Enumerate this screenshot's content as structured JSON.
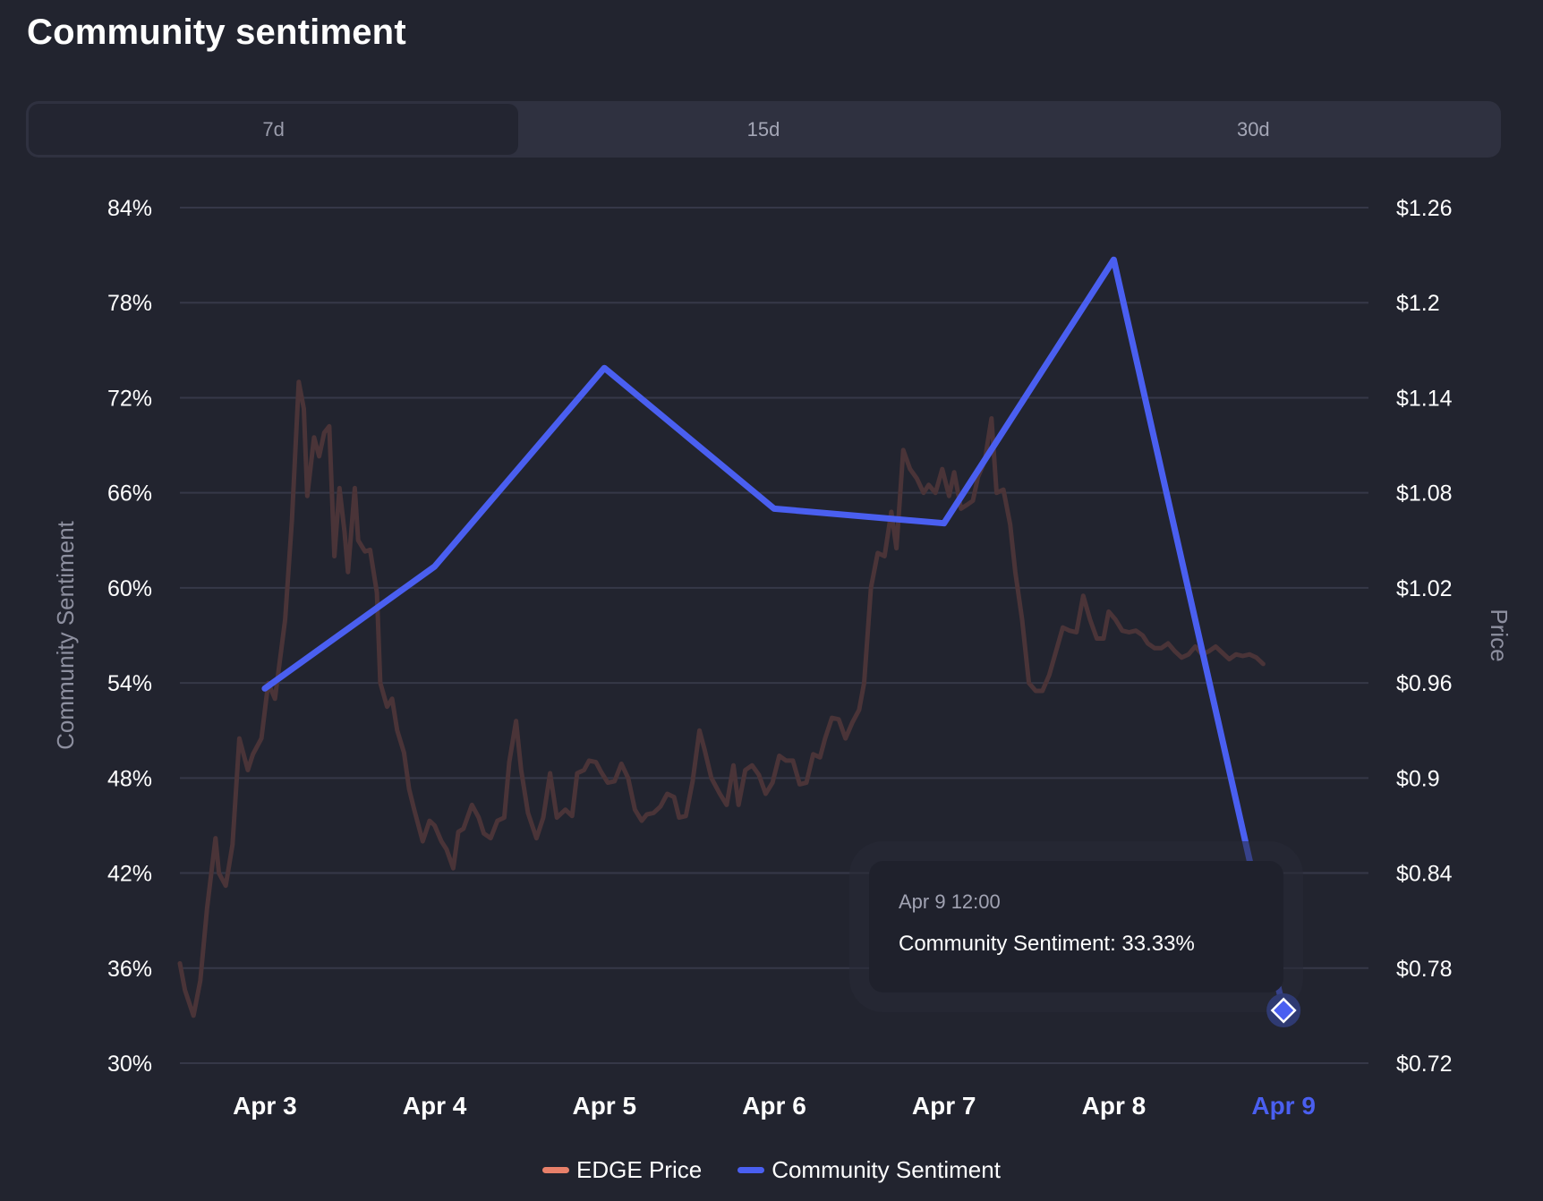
{
  "header": {
    "title": "Community sentiment"
  },
  "tabs": [
    {
      "label": "7d",
      "active": true
    },
    {
      "label": "15d",
      "active": false
    },
    {
      "label": "30d",
      "active": false
    }
  ],
  "tooltip": {
    "date": "Apr 9 12:00",
    "text": "Community Sentiment: 33.33%"
  },
  "colors": {
    "price_line": "#4a3438",
    "price_legend": "#e8806a",
    "sentiment": "#4a5ff0",
    "grid": "#363848",
    "background": "#22242f"
  },
  "chart_data": {
    "type": "line",
    "title": "Community sentiment",
    "xlabel": "",
    "ylabel": "Community Sentiment",
    "y2label": "Price",
    "x_ticks": [
      "Apr 3",
      "Apr 4",
      "Apr 5",
      "Apr 6",
      "Apr 7",
      "Apr 8",
      "Apr 9"
    ],
    "highlighted_x_tick": "Apr 9",
    "y_ticks": [
      "84%",
      "78%",
      "72%",
      "66%",
      "60%",
      "54%",
      "48%",
      "42%",
      "36%",
      "30%"
    ],
    "y2_ticks": [
      "$1.26",
      "$1.2",
      "$1.14",
      "$1.08",
      "$1.02",
      "$0.96",
      "$0.9",
      "$0.84",
      "$0.78",
      "$0.72"
    ],
    "ylim": [
      30,
      84
    ],
    "y2lim": [
      0.72,
      1.26
    ],
    "x_range_days": [
      2.5,
      9.5
    ],
    "grid": true,
    "legend": [
      "EDGE Price",
      "Community Sentiment"
    ],
    "legend_position": "bottom-center",
    "series": [
      {
        "name": "Community Sentiment",
        "axis": "left",
        "x": [
          3,
          4,
          5,
          6,
          7,
          8,
          9
        ],
        "values": [
          53.65,
          61.35,
          73.88,
          65.0,
          64.08,
          80.71,
          33.33
        ]
      },
      {
        "name": "EDGE Price",
        "axis": "right",
        "x": [
          2.5,
          2.53,
          2.58,
          2.62,
          2.66,
          2.71,
          2.73,
          2.77,
          2.81,
          2.85,
          2.9,
          2.93,
          2.98,
          3.02,
          3.06,
          3.12,
          3.16,
          3.2,
          3.23,
          3.25,
          3.29,
          3.32,
          3.35,
          3.38,
          3.41,
          3.44,
          3.47,
          3.49,
          3.53,
          3.55,
          3.59,
          3.62,
          3.66,
          3.68,
          3.72,
          3.75,
          3.78,
          3.82,
          3.85,
          3.88,
          3.93,
          3.97,
          4.0,
          4.04,
          4.07,
          4.11,
          4.14,
          4.17,
          4.22,
          4.26,
          4.29,
          4.33,
          4.37,
          4.41,
          4.44,
          4.48,
          4.51,
          4.55,
          4.6,
          4.64,
          4.68,
          4.72,
          4.77,
          4.81,
          4.84,
          4.88,
          4.91,
          4.95,
          4.98,
          5.02,
          5.06,
          5.1,
          5.14,
          5.18,
          5.22,
          5.25,
          5.29,
          5.33,
          5.37,
          5.41,
          5.44,
          5.48,
          5.52,
          5.56,
          5.59,
          5.63,
          5.68,
          5.72,
          5.76,
          5.79,
          5.83,
          5.87,
          5.91,
          5.95,
          5.99,
          6.03,
          6.07,
          6.11,
          6.15,
          6.19,
          6.23,
          6.27,
          6.3,
          6.34,
          6.38,
          6.42,
          6.46,
          6.5,
          6.53,
          6.57,
          6.61,
          6.65,
          6.69,
          6.72,
          6.76,
          6.8,
          6.84,
          6.88,
          6.91,
          6.95,
          6.99,
          7.03,
          7.06,
          7.1,
          7.13,
          7.17,
          7.2,
          7.24,
          7.28,
          7.31,
          7.35,
          7.39,
          7.42,
          7.46,
          7.5,
          7.54,
          7.58,
          7.62,
          7.66,
          7.7,
          7.74,
          7.78,
          7.82,
          7.86,
          7.9,
          7.94,
          7.97,
          8.01,
          8.05,
          8.09,
          8.13,
          8.17,
          8.2,
          8.24,
          8.28,
          8.32,
          8.36,
          8.4,
          8.44,
          8.48,
          8.52,
          8.56,
          8.6,
          8.64,
          8.68,
          8.72,
          8.76,
          8.8,
          8.84,
          8.88
        ],
        "values": [
          0.783,
          0.766,
          0.75,
          0.772,
          0.818,
          0.862,
          0.84,
          0.832,
          0.858,
          0.925,
          0.905,
          0.915,
          0.925,
          0.96,
          0.95,
          1.0,
          1.063,
          1.15,
          1.133,
          1.078,
          1.115,
          1.103,
          1.118,
          1.122,
          1.04,
          1.083,
          1.055,
          1.03,
          1.083,
          1.05,
          1.043,
          1.044,
          1.017,
          0.96,
          0.945,
          0.95,
          0.93,
          0.916,
          0.893,
          0.88,
          0.86,
          0.873,
          0.87,
          0.86,
          0.855,
          0.843,
          0.866,
          0.868,
          0.883,
          0.875,
          0.865,
          0.862,
          0.873,
          0.875,
          0.91,
          0.936,
          0.905,
          0.878,
          0.862,
          0.875,
          0.903,
          0.875,
          0.88,
          0.876,
          0.903,
          0.905,
          0.911,
          0.91,
          0.904,
          0.897,
          0.898,
          0.909,
          0.9,
          0.88,
          0.873,
          0.877,
          0.878,
          0.882,
          0.89,
          0.888,
          0.875,
          0.876,
          0.898,
          0.93,
          0.918,
          0.9,
          0.89,
          0.883,
          0.908,
          0.883,
          0.905,
          0.908,
          0.902,
          0.89,
          0.897,
          0.914,
          0.911,
          0.911,
          0.896,
          0.897,
          0.915,
          0.913,
          0.925,
          0.938,
          0.937,
          0.925,
          0.935,
          0.943,
          0.96,
          1.02,
          1.042,
          1.04,
          1.068,
          1.045,
          1.107,
          1.095,
          1.089,
          1.08,
          1.085,
          1.08,
          1.095,
          1.078,
          1.093,
          1.07,
          1.072,
          1.075,
          1.09,
          1.1,
          1.127,
          1.08,
          1.082,
          1.06,
          1.03,
          1.0,
          0.96,
          0.955,
          0.955,
          0.965,
          0.98,
          0.995,
          0.993,
          0.992,
          1.015,
          1.0,
          0.988,
          0.988,
          1.005,
          1.0,
          0.993,
          0.992,
          0.993,
          0.99,
          0.985,
          0.982,
          0.982,
          0.985,
          0.98,
          0.976,
          0.978,
          0.983,
          0.978,
          0.98,
          0.983,
          0.979,
          0.975,
          0.978,
          0.977,
          0.978,
          0.976,
          0.972
        ]
      }
    ],
    "active_point": {
      "series": "Community Sentiment",
      "x_label": "Apr 9",
      "value": 33.33
    }
  },
  "legend": {
    "items": [
      {
        "label": "EDGE Price"
      },
      {
        "label": "Community Sentiment"
      }
    ]
  }
}
